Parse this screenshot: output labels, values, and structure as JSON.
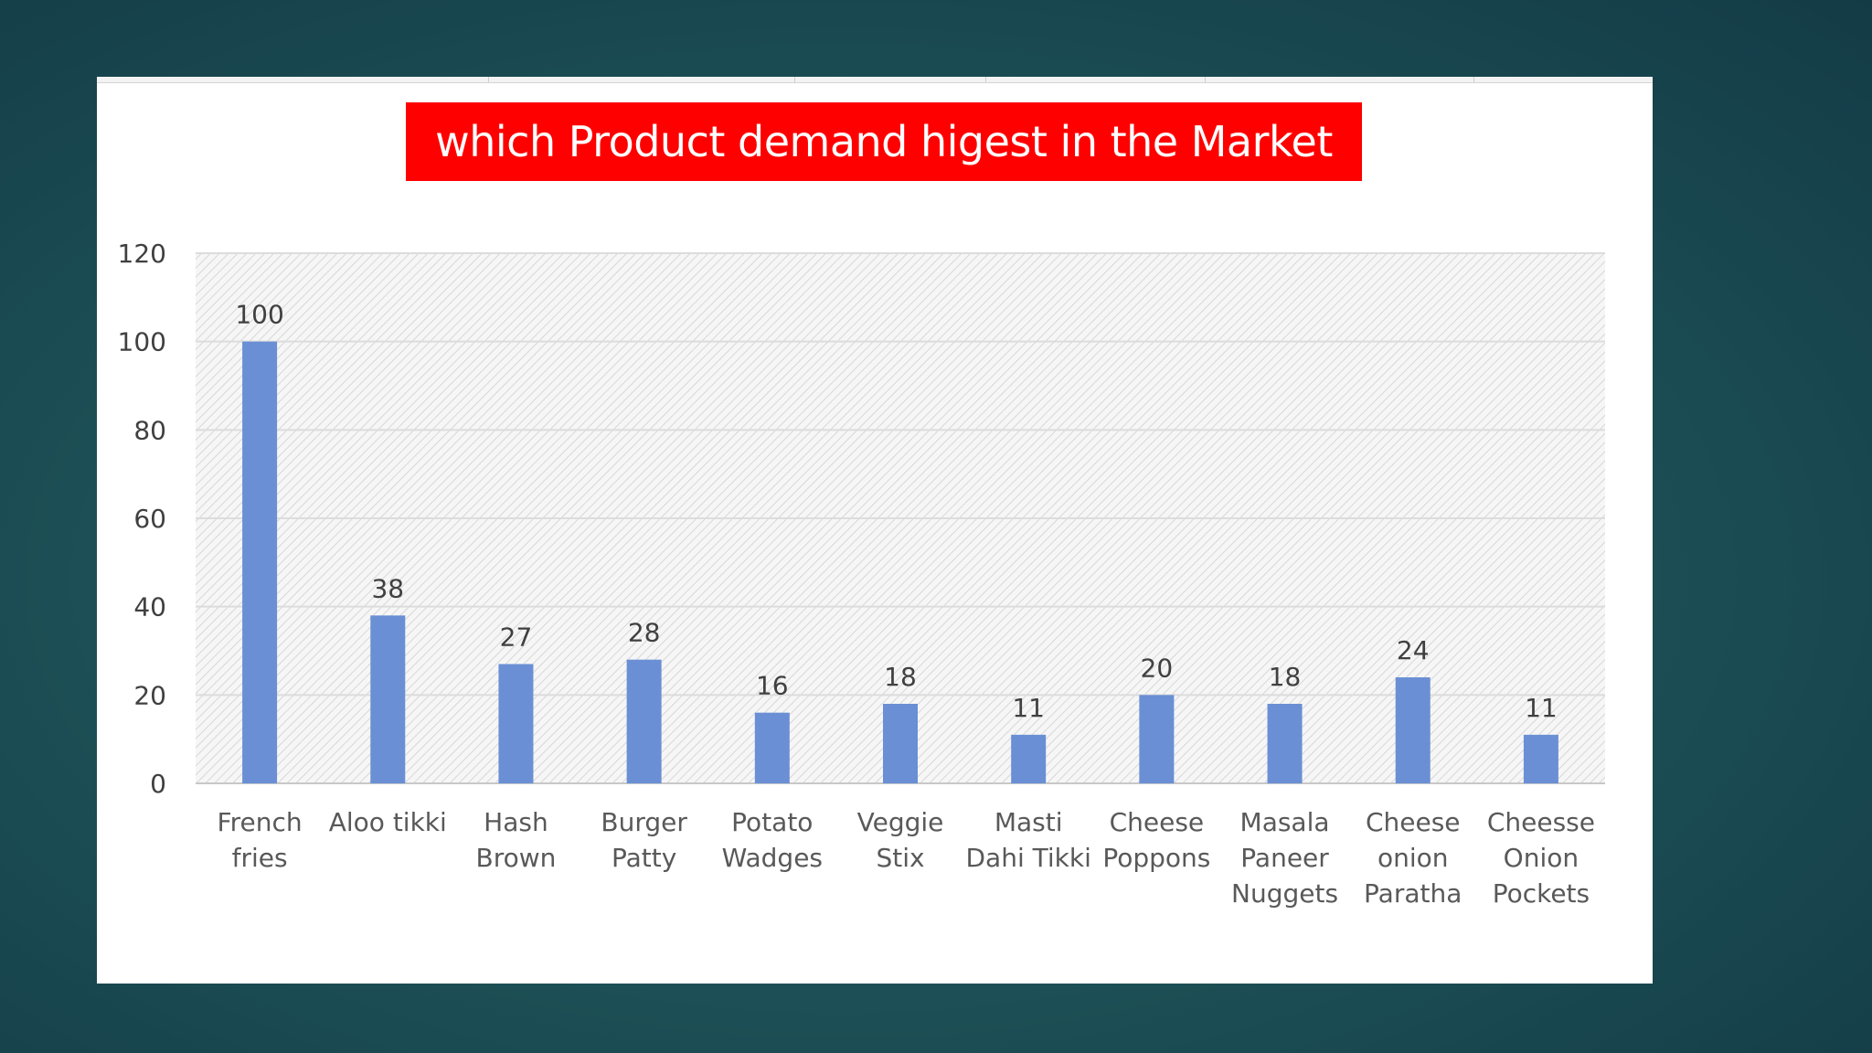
{
  "slide": {
    "background_color": "#1e5258",
    "panel_color": "#ffffff"
  },
  "chart_data": {
    "type": "bar",
    "title": "which Product demand higest in the Market",
    "title_background": "#ff0000",
    "bar_color": "#6a8fd4",
    "xlabel": "",
    "ylabel": "",
    "ylim": [
      0,
      120
    ],
    "yticks": [
      0,
      20,
      40,
      60,
      80,
      100,
      120
    ],
    "grid": true,
    "plot_fill": "diagonal hatch",
    "categories": [
      [
        "French",
        "fries"
      ],
      [
        "Aloo tikki"
      ],
      [
        "Hash",
        "Brown"
      ],
      [
        "Burger",
        "Patty"
      ],
      [
        "Potato",
        "Wadges"
      ],
      [
        "Veggie",
        "Stix"
      ],
      [
        "Masti",
        "Dahi Tikki"
      ],
      [
        "Cheese",
        "Poppons"
      ],
      [
        "Masala",
        "Paneer",
        "Nuggets"
      ],
      [
        "Cheese",
        "onion",
        "Paratha"
      ],
      [
        "Cheesse",
        "Onion",
        "Pockets"
      ]
    ],
    "values": [
      100,
      38,
      27,
      28,
      16,
      18,
      11,
      20,
      18,
      24,
      11
    ]
  }
}
